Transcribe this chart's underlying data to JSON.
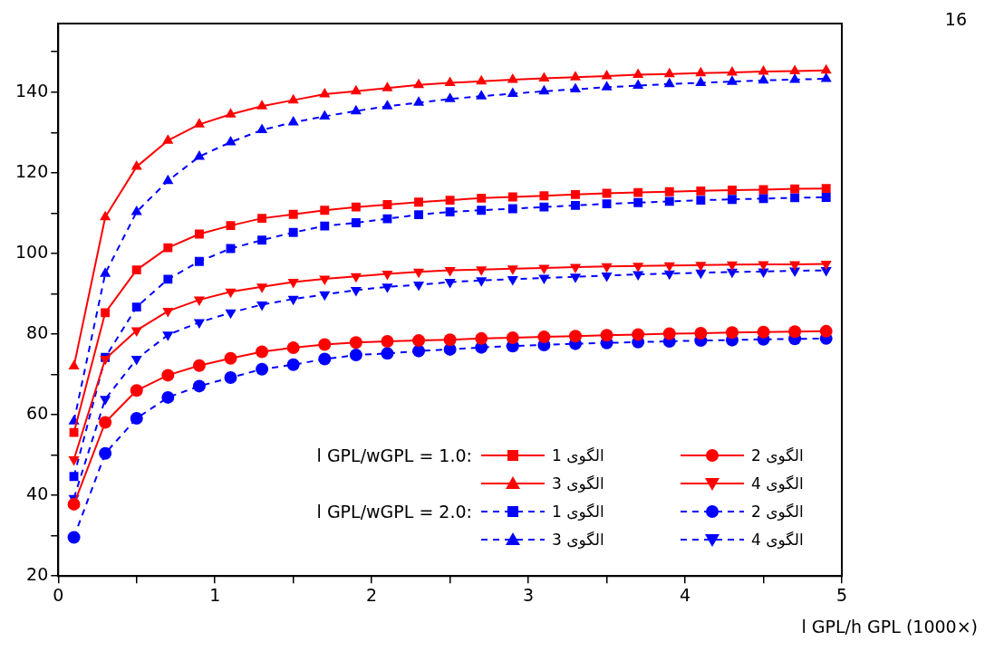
{
  "chart_data": {
    "type": "line",
    "xlabel": "l GPL/h GPL (1000×)",
    "annotations": [
      "l GPL/wGPL = 1.0:",
      "l GPL/wGPL = 2.0:",
      "16"
    ],
    "x": [
      0.1,
      0.3,
      0.5,
      0.7,
      0.9,
      1.1,
      1.3,
      1.5,
      1.7,
      1.9,
      2.1,
      2.3,
      2.5,
      2.7,
      2.9,
      3.1,
      3.3,
      3.5,
      3.7,
      3.9,
      4.1,
      4.3,
      4.5,
      4.7,
      4.9
    ],
    "xlim": [
      0,
      5
    ],
    "xticks": [
      0,
      {
        "value": 0.5,
        "label": null
      },
      1,
      {
        "value": 1.5,
        "label": null
      },
      2,
      {
        "value": 2.5,
        "label": null
      },
      3,
      {
        "value": 3.5,
        "label": null
      },
      4,
      {
        "value": 4.5,
        "label": null
      },
      5
    ],
    "ylim": [
      20,
      157
    ],
    "yticks": [
      20,
      {
        "value": 30,
        "label": null
      },
      40,
      {
        "value": 50,
        "label": null
      },
      60,
      {
        "value": 70,
        "label": null
      },
      80,
      {
        "value": 90,
        "label": null
      },
      100,
      {
        "value": 110,
        "label": null
      },
      120,
      {
        "value": 130,
        "label": null
      },
      140,
      {
        "value": 150,
        "label": null
      }
    ],
    "grid": false,
    "legend": "bottom right",
    "series": [
      {
        "name": "الگوی 1",
        "color": "#ff0000",
        "marker": "square",
        "line_style": "solid",
        "values": [
          55.6,
          85.3,
          95.9,
          101.4,
          104.8,
          106.9,
          108.7,
          109.7,
          110.7,
          111.5,
          112.1,
          112.7,
          113.2,
          113.7,
          114,
          114.3,
          114.6,
          114.9,
          115.1,
          115.3,
          115.5,
          115.7,
          115.8,
          116,
          116.1
        ]
      },
      {
        "name": "الگوی 2",
        "color": "#ff0000",
        "marker": "circle",
        "line_style": "solid",
        "values": [
          37.8,
          58.1,
          66,
          69.8,
          72.2,
          74,
          75.6,
          76.6,
          77.4,
          77.9,
          78.2,
          78.4,
          78.6,
          78.9,
          79.1,
          79.3,
          79.5,
          79.7,
          79.9,
          80.1,
          80.2,
          80.4,
          80.5,
          80.6,
          80.7
        ]
      },
      {
        "name": "الگوی 3",
        "color": "#ff0000",
        "marker": "triangle",
        "line_style": "solid",
        "values": [
          72,
          109,
          121.5,
          128,
          132,
          134.5,
          136.5,
          138,
          139.5,
          140.2,
          141,
          141.8,
          142.3,
          142.7,
          143.1,
          143.4,
          143.7,
          144,
          144.3,
          144.5,
          144.7,
          144.9,
          145.1,
          145.2,
          145.4
        ]
      },
      {
        "name": "الگوی 4",
        "color": "#ff0000",
        "marker": "triangle-down",
        "line_style": "solid",
        "values": [
          48.9,
          73.8,
          80.9,
          85.7,
          88.5,
          90.5,
          91.7,
          92.9,
          93.7,
          94.3,
          94.9,
          95.4,
          95.8,
          96,
          96.2,
          96.4,
          96.6,
          96.8,
          96.9,
          97,
          97.1,
          97.2,
          97.3,
          97.3,
          97.4
        ]
      },
      {
        "name": "الگوی 1",
        "color": "#0000ff",
        "marker": "square",
        "line_style": "dashed",
        "values": [
          44.7,
          74.2,
          86.7,
          93.6,
          98,
          101.2,
          103.3,
          105.2,
          106.8,
          107.6,
          108.6,
          109.6,
          110.3,
          110.7,
          111.1,
          111.5,
          111.9,
          112.3,
          112.6,
          112.9,
          113.2,
          113.4,
          113.6,
          113.8,
          113.9
        ]
      },
      {
        "name": "الگوی 2",
        "color": "#0000ff",
        "marker": "circle",
        "line_style": "dashed",
        "values": [
          29.6,
          50.4,
          59.1,
          64.3,
          67.1,
          69.2,
          71.3,
          72.4,
          73.8,
          74.8,
          75.2,
          75.8,
          76.2,
          76.7,
          77,
          77.3,
          77.6,
          77.8,
          78,
          78.2,
          78.4,
          78.5,
          78.7,
          78.8,
          78.9
        ]
      },
      {
        "name": "الگوی 3",
        "color": "#0000ff",
        "marker": "triangle",
        "line_style": "dashed",
        "values": [
          58.4,
          95,
          110.3,
          118,
          124,
          127.6,
          130.6,
          132.5,
          134,
          135.3,
          136.5,
          137.4,
          138.3,
          139,
          139.6,
          140.2,
          140.7,
          141.2,
          141.6,
          142,
          142.3,
          142.6,
          142.9,
          143.1,
          143.3
        ]
      },
      {
        "name": "الگوی 4",
        "color": "#0000ff",
        "marker": "triangle-down",
        "line_style": "dashed",
        "values": [
          39.3,
          63.9,
          73.8,
          79.8,
          82.9,
          85.3,
          87.3,
          88.7,
          89.8,
          90.9,
          91.7,
          92.2,
          92.9,
          93.3,
          93.6,
          93.9,
          94.2,
          94.5,
          94.8,
          95,
          95.2,
          95.4,
          95.5,
          95.7,
          95.8
        ]
      }
    ]
  }
}
